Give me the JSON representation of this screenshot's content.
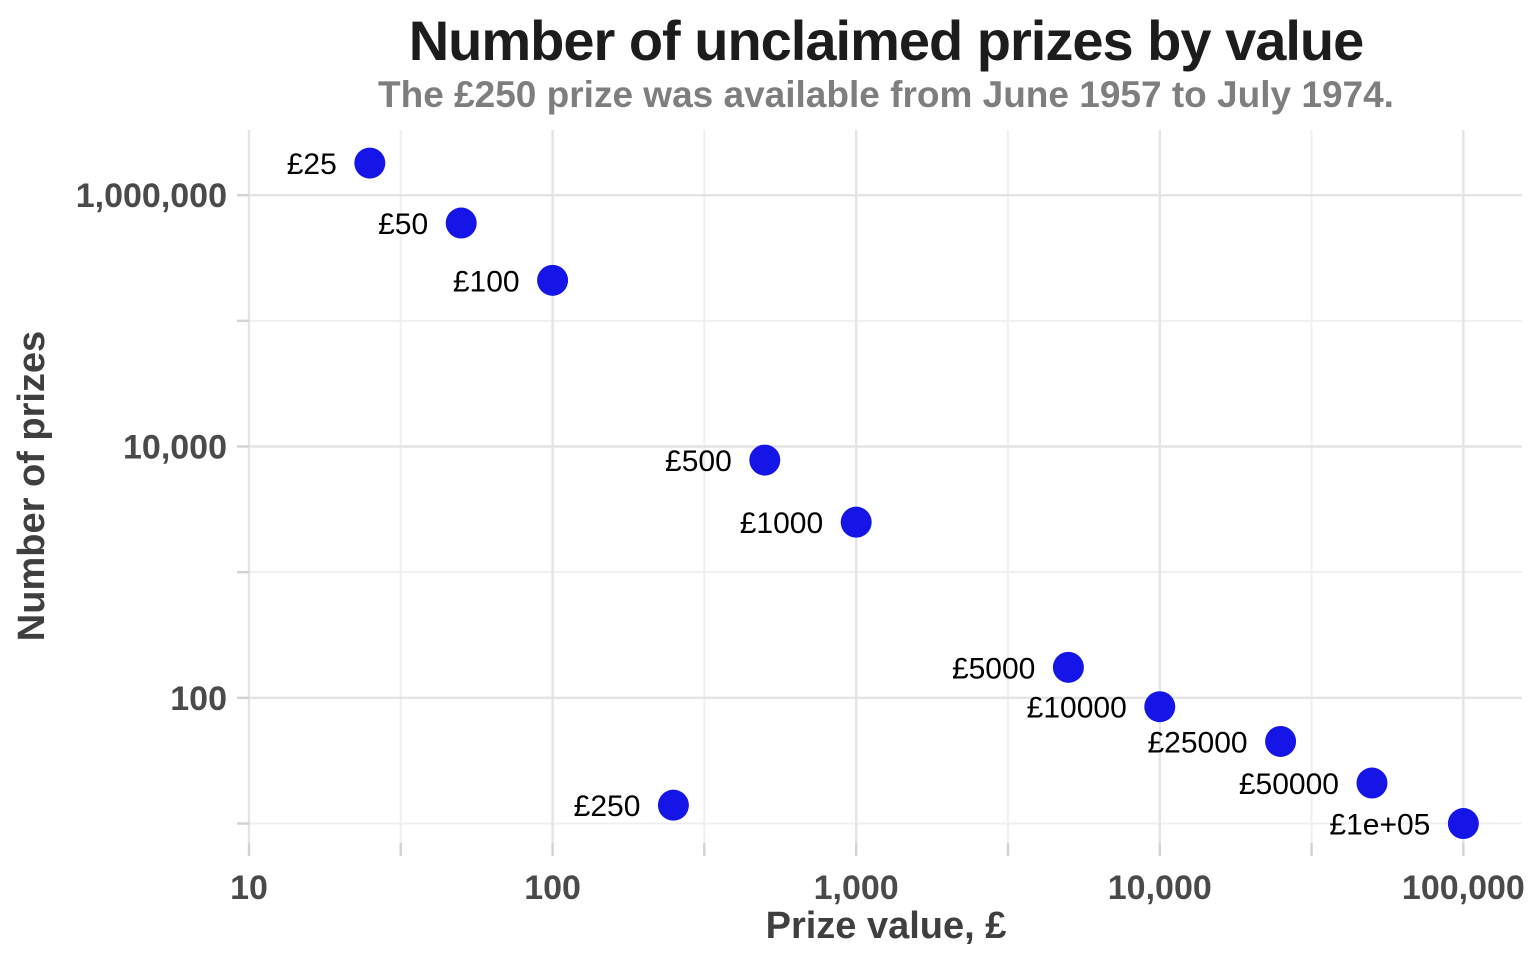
{
  "chart_data": {
    "type": "scatter",
    "title": "Number of unclaimed prizes by value",
    "subtitle": "The £250 prize was available from June 1957 to July 1974.",
    "xlabel": "Prize value, £",
    "ylabel": "Number of prizes",
    "x_scale": "log10",
    "y_scale": "log10",
    "x_range": [
      10,
      156000
    ],
    "y_range": [
      7,
      3300000
    ],
    "grid": true,
    "legend_position": "none",
    "point_color": "#1515e8",
    "x_major_ticks": [
      {
        "value": 10,
        "label": "10"
      },
      {
        "value": 100,
        "label": "100"
      },
      {
        "value": 1000,
        "label": "1,000"
      },
      {
        "value": 10000,
        "label": "10,000"
      },
      {
        "value": 100000,
        "label": "100,000"
      }
    ],
    "x_minor_ticks": [
      31.6,
      316,
      3162,
      31623
    ],
    "y_major_ticks": [
      {
        "value": 100,
        "label": "100"
      },
      {
        "value": 10000,
        "label": "10,000"
      },
      {
        "value": 1000000,
        "label": "1,000,000"
      }
    ],
    "y_minor_ticks": [
      10,
      1000,
      100000
    ],
    "points": [
      {
        "label": "£25",
        "x": 25,
        "y": 1800000
      },
      {
        "label": "£50",
        "x": 50,
        "y": 600000
      },
      {
        "label": "£100",
        "x": 100,
        "y": 210000
      },
      {
        "label": "£250",
        "x": 250,
        "y": 14
      },
      {
        "label": "£500",
        "x": 500,
        "y": 7800
      },
      {
        "label": "£1000",
        "x": 1000,
        "y": 2500
      },
      {
        "label": "£5000",
        "x": 5000,
        "y": 175
      },
      {
        "label": "£10000",
        "x": 10000,
        "y": 85
      },
      {
        "label": "£25000",
        "x": 25000,
        "y": 45
      },
      {
        "label": "£50000",
        "x": 50000,
        "y": 21
      },
      {
        "label": "£1e+05",
        "x": 100000,
        "y": 10
      }
    ]
  }
}
